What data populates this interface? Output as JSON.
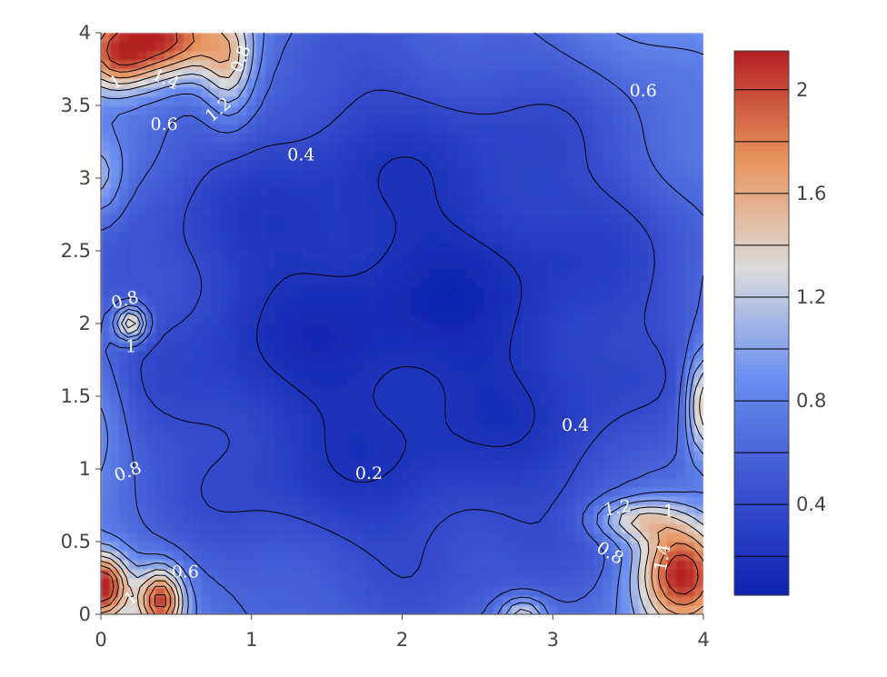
{
  "chart_data": {
    "type": "heatmap",
    "subtype": "filled-contour",
    "title": "",
    "xlabel": "",
    "ylabel": "",
    "xlim": [
      0,
      4
    ],
    "ylim": [
      0,
      4
    ],
    "x_ticks": [
      0,
      1,
      2,
      3,
      4
    ],
    "x_tick_labels": [
      "0",
      "1",
      "2",
      "3",
      "4"
    ],
    "y_ticks": [
      0,
      0.5,
      1,
      1.5,
      2,
      2.5,
      3,
      3.5,
      4
    ],
    "y_tick_labels": [
      "0",
      "0.5",
      "1",
      "1.5",
      "2",
      "2.5",
      "3",
      "3.5",
      "4"
    ],
    "colorscale": [
      "#0c22b0",
      "#3b53d0",
      "#6a8ef0",
      "#dcdcdc",
      "#e8955e",
      "#b42023"
    ],
    "colorbar": {
      "range": [
        0.05,
        2.15
      ],
      "ticks": [
        0.4,
        0.8,
        1.2,
        1.6,
        2
      ],
      "tick_labels": [
        "0.4",
        "0.8",
        "1.2",
        "1.6",
        "2"
      ],
      "levels": [
        0.2,
        0.4,
        0.6,
        0.8,
        1.0,
        1.2,
        1.4,
        1.6,
        1.8,
        2.0
      ],
      "placement": "right"
    },
    "contour_levels": [
      0.2,
      0.4,
      0.6,
      0.8,
      1.0,
      1.2,
      1.4,
      1.6,
      1.8,
      2.0
    ],
    "peaks": [
      {
        "x": 0.4,
        "y": 3.95,
        "value": 1.9,
        "sx": 0.3,
        "sy": 0.2
      },
      {
        "x": 0.85,
        "y": 3.75,
        "value": 1.2,
        "sx": 0.12,
        "sy": 0.25
      },
      {
        "x": 0.1,
        "y": 3.8,
        "value": 1.1,
        "sx": 0.15,
        "sy": 0.15
      },
      {
        "x": 0.2,
        "y": 2.0,
        "value": 1.6,
        "sx": 0.07,
        "sy": 0.08
      },
      {
        "x": 0.0,
        "y": 0.2,
        "value": 2.0,
        "sx": 0.12,
        "sy": 0.15
      },
      {
        "x": 0.4,
        "y": 0.1,
        "value": 1.8,
        "sx": 0.1,
        "sy": 0.15
      },
      {
        "x": 3.85,
        "y": 0.3,
        "value": 1.9,
        "sx": 0.2,
        "sy": 0.25
      },
      {
        "x": 3.55,
        "y": 0.65,
        "value": 1.2,
        "sx": 0.2,
        "sy": 0.1
      },
      {
        "x": 4.0,
        "y": 1.45,
        "value": 1.5,
        "sx": 0.08,
        "sy": 0.25
      },
      {
        "x": 2.8,
        "y": 0.0,
        "value": 1.2,
        "sx": 0.1,
        "sy": 0.08
      },
      {
        "x": 0.0,
        "y": 3.0,
        "value": 0.9,
        "sx": 0.1,
        "sy": 0.2
      },
      {
        "x": 0.0,
        "y": 1.4,
        "value": 0.75,
        "sx": 0.12,
        "sy": 0.3
      }
    ],
    "contour_labels": [
      {
        "text": "0.8",
        "x": 0.93,
        "y": 3.82,
        "rotate": -70
      },
      {
        "text": "1.4",
        "x": 0.43,
        "y": 3.68,
        "rotate": 25
      },
      {
        "text": "1",
        "x": 0.1,
        "y": 3.66,
        "rotate": -30
      },
      {
        "text": "1.2",
        "x": 0.78,
        "y": 3.47,
        "rotate": -40
      },
      {
        "text": "0.6",
        "x": 0.42,
        "y": 3.37,
        "rotate": 0
      },
      {
        "text": "0.4",
        "x": 1.33,
        "y": 3.16,
        "rotate": 0
      },
      {
        "text": "0.6",
        "x": 3.6,
        "y": 3.6,
        "rotate": 0
      },
      {
        "text": "0.8",
        "x": 0.16,
        "y": 2.16,
        "rotate": -15
      },
      {
        "text": "1",
        "x": 0.2,
        "y": 1.84,
        "rotate": 0
      },
      {
        "text": "0.8",
        "x": 0.18,
        "y": 0.98,
        "rotate": -20
      },
      {
        "text": "0.2",
        "x": 1.78,
        "y": 0.97,
        "rotate": 0
      },
      {
        "text": "0.4",
        "x": 3.15,
        "y": 1.3,
        "rotate": 0
      },
      {
        "text": "1.2",
        "x": 3.43,
        "y": 0.73,
        "rotate": -10
      },
      {
        "text": "1",
        "x": 3.77,
        "y": 0.71,
        "rotate": 0
      },
      {
        "text": "0.8",
        "x": 3.38,
        "y": 0.42,
        "rotate": 30
      },
      {
        "text": "1.4",
        "x": 3.73,
        "y": 0.39,
        "rotate": -80
      },
      {
        "text": "0.6",
        "x": 0.56,
        "y": 0.29,
        "rotate": 0
      },
      {
        "text": "1",
        "x": 0.2,
        "y": 0.11,
        "rotate": -40
      }
    ]
  }
}
